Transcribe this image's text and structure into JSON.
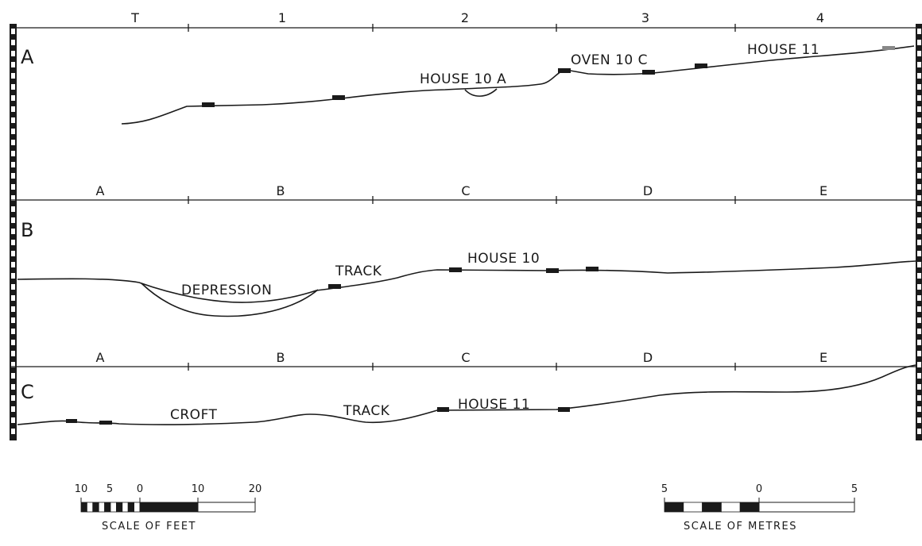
{
  "sections": [
    {
      "id": "A",
      "grid_labels": [
        "T",
        "1",
        "2",
        "3",
        "4"
      ],
      "features": [
        "HOUSE 10 A",
        "OVEN 10 C",
        "HOUSE 11"
      ]
    },
    {
      "id": "B",
      "grid_labels": [
        "A",
        "B",
        "C",
        "D",
        "E"
      ],
      "features": [
        "DEPRESSION",
        "TRACK",
        "HOUSE 10"
      ]
    },
    {
      "id": "C",
      "grid_labels": [
        "A",
        "B",
        "C",
        "D",
        "E"
      ],
      "features": [
        "CROFT",
        "TRACK",
        "HOUSE 11"
      ]
    }
  ],
  "scale_feet": {
    "ticks": [
      "10",
      "5",
      "0",
      "10",
      "20"
    ],
    "caption": "SCALE  OF  FEET"
  },
  "scale_metres": {
    "ticks": [
      "5",
      "0",
      "5"
    ],
    "caption": "SCALE  OF  METRES"
  }
}
